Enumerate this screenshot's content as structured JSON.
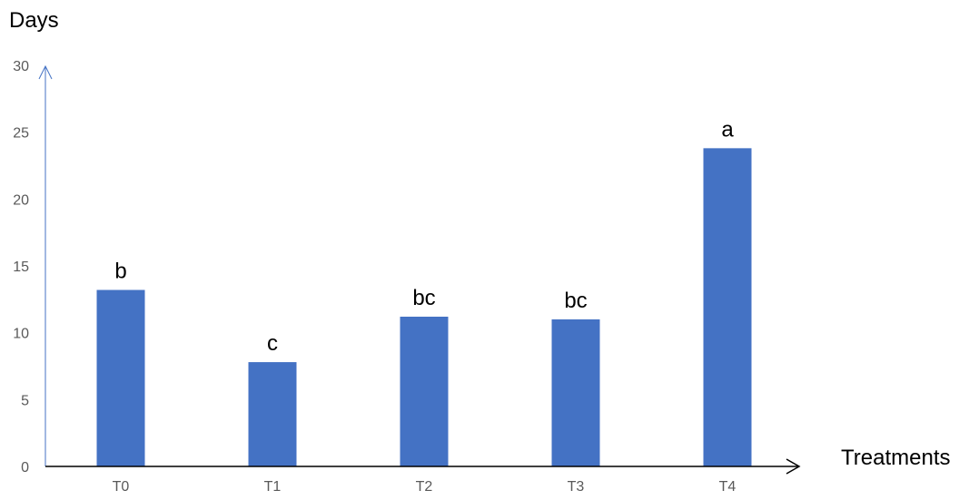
{
  "chart_data": {
    "type": "bar",
    "ylabel": "Days",
    "xlabel": "Treatments",
    "categories": [
      "T0",
      "T1",
      "T2",
      "T3",
      "T4"
    ],
    "values": [
      13.2,
      7.8,
      11.2,
      11.0,
      23.8
    ],
    "data_labels": [
      "b",
      "c",
      "bc",
      "bc",
      "a"
    ],
    "ylim": [
      0,
      30
    ],
    "yticks": [
      "0",
      "5",
      "10",
      "15",
      "20",
      "25",
      "30"
    ],
    "grid": false,
    "legend": "none",
    "colors": {
      "bar": "#4472C4",
      "y_axis": "#4472C4",
      "x_axis": "#000000"
    }
  }
}
